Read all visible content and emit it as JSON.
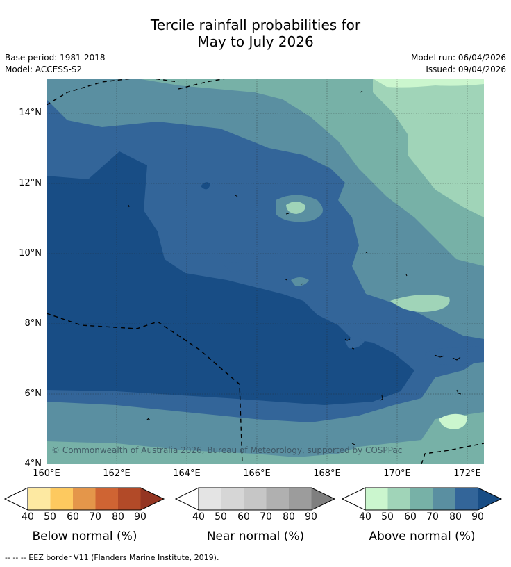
{
  "title_line1": "Tercile rainfall probabilities for",
  "title_line2": "May to July 2026",
  "base_period": "Base period: 1981-2018",
  "model": "Model: ACCESS-S2",
  "model_run": "Model run: 06/04/2026",
  "issued": "Issued: 09/04/2026",
  "y_ticks": [
    "14°N",
    "12°N",
    "10°N",
    "8°N",
    "6°N",
    "4°N"
  ],
  "x_ticks": [
    "160°E",
    "162°E",
    "164°E",
    "166°E",
    "168°E",
    "170°E",
    "172°E"
  ],
  "copyright": "© Commonwealth of Australia 2026, Bureau of Meteorology, supported by COSPPac",
  "colorbars": [
    {
      "title": "Below normal (%)",
      "labels": [
        "40",
        "50",
        "60",
        "70",
        "80",
        "90"
      ],
      "colors": [
        "#fde9a2",
        "#fdc95f",
        "#e4964a",
        "#cf6433",
        "#b24a28",
        "#943522"
      ]
    },
    {
      "title": "Near normal (%)",
      "labels": [
        "40",
        "50",
        "60",
        "70",
        "80",
        "90"
      ],
      "colors": [
        "#e4e4e4",
        "#d6d6d6",
        "#c6c6c6",
        "#b0b0b0",
        "#9c9c9c",
        "#7f7f7f"
      ]
    },
    {
      "title": "Above normal (%)",
      "labels": [
        "40",
        "50",
        "60",
        "70",
        "80",
        "90"
      ],
      "colors": [
        "#cbf6ce",
        "#a0d4b8",
        "#77b1a7",
        "#5a8fa1",
        "#336599",
        "#184d85"
      ]
    }
  ],
  "footer": "--  --  -- EEZ border V11 (Flanders Marine Institute, 2019)."
}
